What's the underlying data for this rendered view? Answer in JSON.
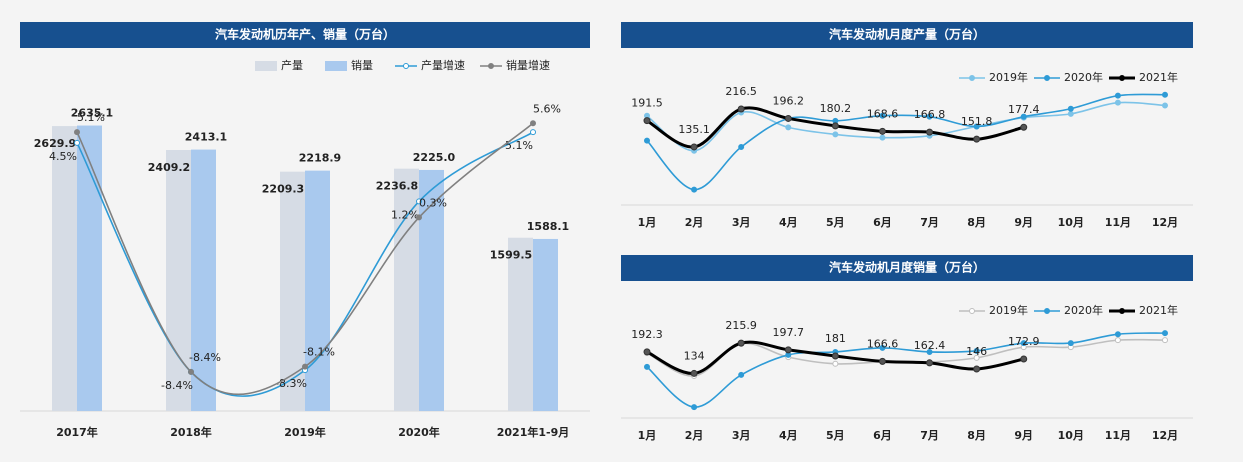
{
  "chart_data": [
    {
      "type": "bar",
      "title": "汽车发动机历年产、销量（万台）",
      "categories": [
        "2017年",
        "2018年",
        "2019年",
        "2020年",
        "2021年1-9月"
      ],
      "ylim": [
        0,
        3000
      ],
      "y2lim": [
        -10.6,
        7.7
      ],
      "series": [
        {
          "name": "产量",
          "color": "#d6dce5",
          "values": [
            2629.9,
            2409.2,
            2209.3,
            2236.8,
            1599.5
          ]
        },
        {
          "name": "销量",
          "color": "#a9c9ee",
          "values": [
            2635.1,
            2413.1,
            2218.9,
            2225.0,
            1588.1
          ],
          "value_labels": [
            "2635.1",
            "2413.1",
            "2218.9",
            "2225.0",
            "1588.1"
          ]
        },
        {
          "name": "产量增速",
          "color": "#2e9bd6",
          "axis": "y2",
          "values": [
            4.5,
            -8.4,
            -8.3,
            1.2,
            5.1
          ],
          "value_labels": [
            "4.5%",
            "-8.4%",
            "-8.3%",
            "1.2%",
            "5.1%"
          ]
        },
        {
          "name": "销量增速",
          "color": "#808080",
          "axis": "y2",
          "values": [
            5.1,
            -8.4,
            -8.1,
            0.3,
            5.6
          ],
          "value_labels": [
            "5.1%",
            "-8.4%",
            "-8.1%",
            "0.3%",
            "5.6%"
          ]
        }
      ]
    },
    {
      "type": "line",
      "title": "汽车发动机月度产量（万台）",
      "categories": [
        "1月",
        "2月",
        "3月",
        "4月",
        "5月",
        "6月",
        "7月",
        "8月",
        "9月",
        "10月",
        "11月",
        "12月"
      ],
      "ylim": [
        0,
        300
      ],
      "series": [
        {
          "name": "2019年",
          "color": "#7cc3e8",
          "values": [
            202,
            127,
            209,
            177,
            162,
            155,
            159,
            179,
            198,
            206,
            230,
            224
          ]
        },
        {
          "name": "2020年",
          "color": "#2e9bd6",
          "values": [
            148.7,
            43.7,
            135,
            196,
            191,
            202,
            200,
            179,
            200,
            217,
            245,
            247
          ]
        },
        {
          "name": "2021年",
          "color": "#000000",
          "labels": true,
          "values": [
            191.5,
            135.1,
            216.5,
            196.2,
            180.2,
            168.6,
            166.8,
            151.8,
            177.4,
            null,
            null,
            null
          ]
        }
      ]
    },
    {
      "type": "line",
      "title": "汽车发动机月度销量（万台）",
      "categories": [
        "1月",
        "2月",
        "3月",
        "4月",
        "5月",
        "6月",
        "7月",
        "8月",
        "9月",
        "10月",
        "11月",
        "12月"
      ],
      "ylim": [
        0,
        300
      ],
      "series": [
        {
          "name": "2019年",
          "color": "#bfbfbf",
          "hollow": true,
          "values": [
            189,
            127,
            214,
            178,
            160,
            165,
            165,
            176,
            205,
            205,
            224,
            224
          ]
        },
        {
          "name": "2020年",
          "color": "#2e9bd6",
          "values": [
            151.8,
            43,
            130,
            184,
            192,
            203,
            192,
            195,
            216,
            216,
            240,
            243
          ]
        },
        {
          "name": "2021年",
          "color": "#000000",
          "labels": true,
          "values": [
            192.3,
            134.0,
            215.9,
            197.7,
            181.0,
            166.6,
            162.4,
            146.0,
            172.9,
            null,
            null,
            null
          ]
        }
      ]
    }
  ]
}
